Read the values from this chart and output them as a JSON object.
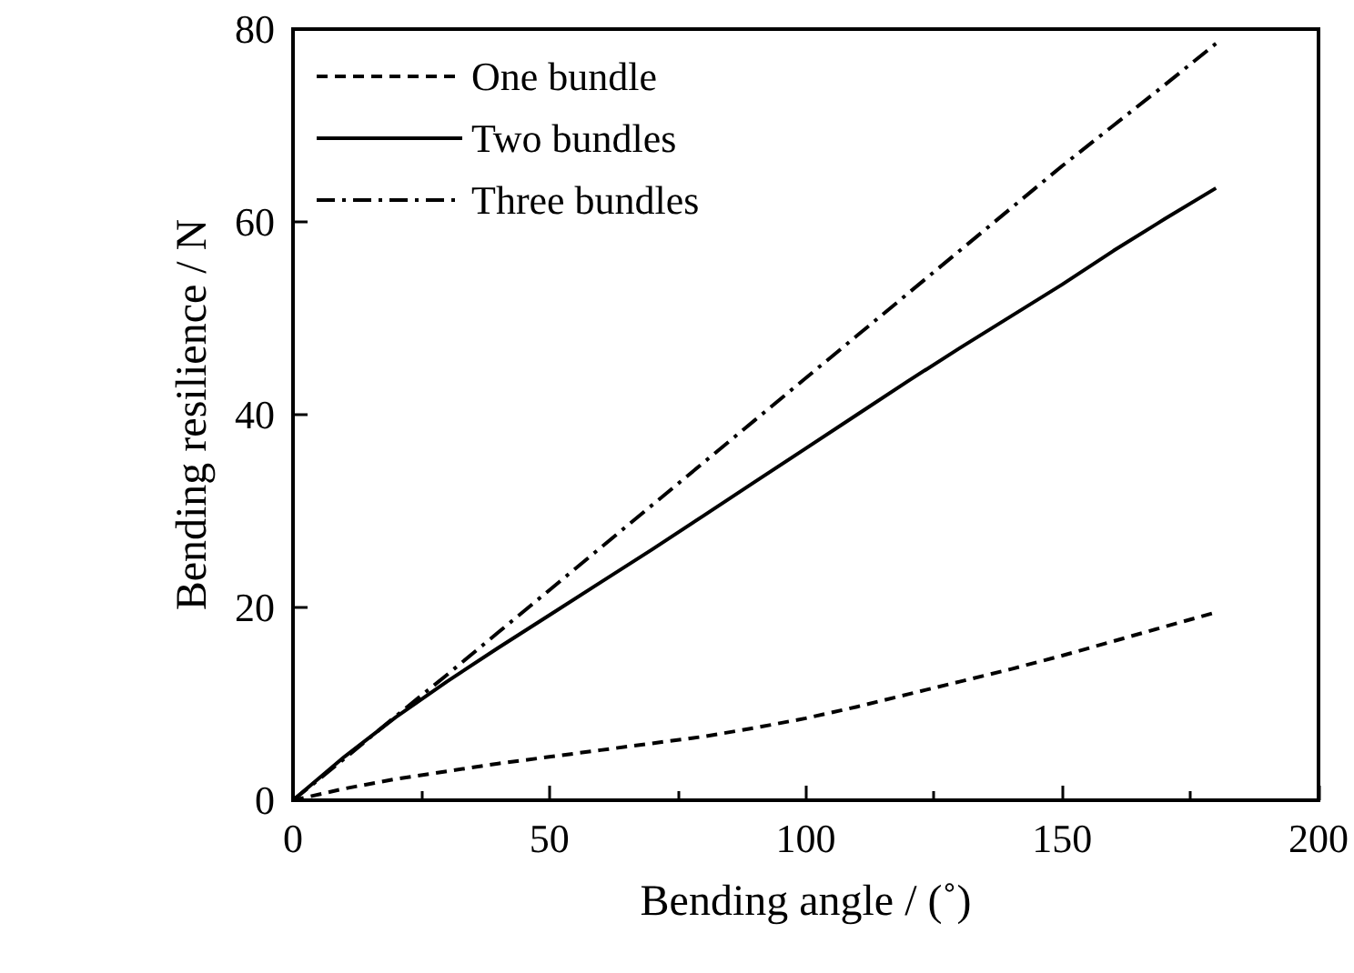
{
  "chart_data": {
    "type": "line",
    "xlabel": "Bending angle / (˚)",
    "ylabel": "Bending resilience / N",
    "x": [
      0,
      10,
      20,
      30,
      40,
      50,
      60,
      70,
      80,
      90,
      100,
      110,
      120,
      130,
      140,
      150,
      160,
      170,
      180
    ],
    "series": [
      {
        "name": "One bundle",
        "color": "#000000",
        "line_style": "dashed",
        "values": [
          0,
          1.2,
          2.2,
          3.0,
          3.8,
          4.5,
          5.2,
          5.9,
          6.6,
          7.5,
          8.5,
          9.7,
          11,
          12.3,
          13.6,
          15,
          16.5,
          18,
          19.5
        ]
      },
      {
        "name": "Two bundles",
        "color": "#000000",
        "line_style": "solid",
        "values": [
          0,
          4.5,
          8.6,
          12.3,
          15.8,
          19.2,
          22.6,
          26,
          29.5,
          33,
          36.5,
          40,
          43.5,
          46.9,
          50.2,
          53.5,
          57,
          60.3,
          63.5
        ]
      },
      {
        "name": "Three bundles",
        "color": "#000000",
        "line_style": "dashdot",
        "values": [
          0,
          4.3,
          8.7,
          13,
          17.4,
          21.8,
          26.2,
          30.6,
          35,
          39.4,
          43.8,
          48.2,
          52.6,
          57,
          61.4,
          65.8,
          70,
          74.2,
          78.5
        ]
      }
    ],
    "xlim": [
      0,
      200
    ],
    "xticks": [
      0,
      50,
      100,
      150,
      200
    ],
    "ylim": [
      0,
      80
    ],
    "yticks": [
      0,
      20,
      40,
      60,
      80
    ],
    "grid": false,
    "legend": "top left",
    "marker": "none"
  }
}
